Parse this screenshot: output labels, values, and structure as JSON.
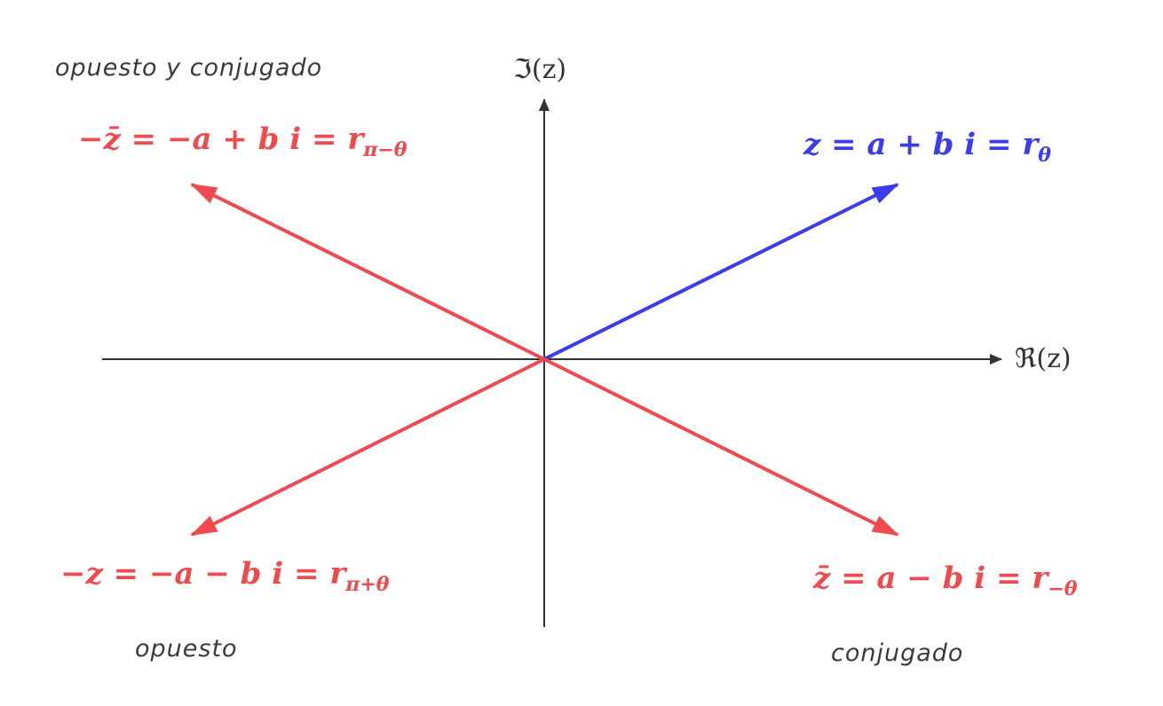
{
  "colors": {
    "axis": "#333333",
    "z": "#3b3bf0",
    "opposite": "#f04a4f",
    "caption": "#3a3a3a"
  },
  "axes": {
    "real_label": "ℜ(z)",
    "imag_label": "ℑ(z)"
  },
  "captions": {
    "top_left": "opuesto y conjugado",
    "bottom_left": "opuesto",
    "bottom_right": "conjugado"
  },
  "vectors": {
    "z": {
      "main": "z = a + b i = r",
      "sub": "θ"
    },
    "neg_conj": {
      "main": "−z̄ = −a + b i = r",
      "sub": "π−θ"
    },
    "neg": {
      "main": "−z = −a − b i = r",
      "sub": "π+θ"
    },
    "conj": {
      "main": "z̄ = a − b i = r",
      "sub": "−θ"
    }
  }
}
